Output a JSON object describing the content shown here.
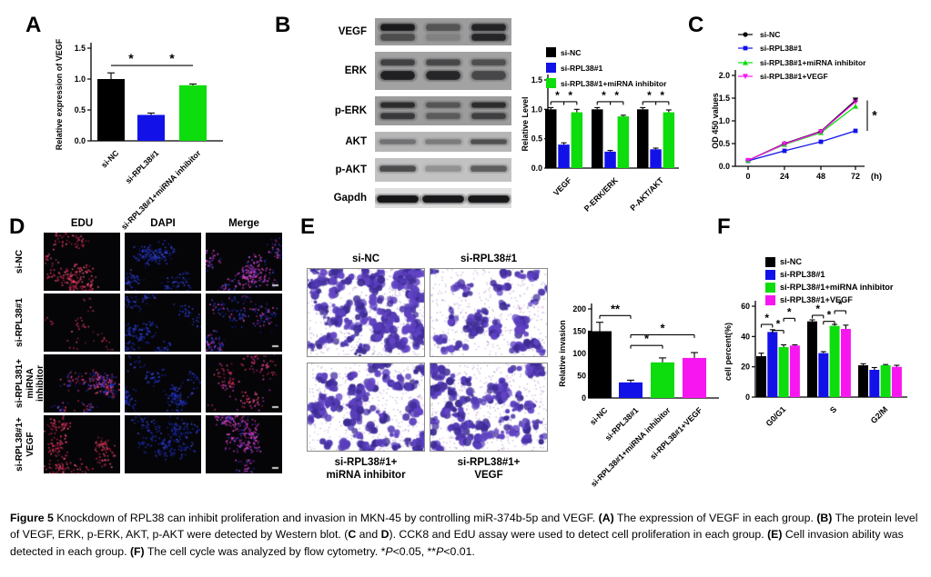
{
  "colors": {
    "black": "#000000",
    "blue": "#1212e8",
    "green": "#0ddc0d",
    "magenta": "#f716f0"
  },
  "panels": {
    "A": {
      "label": "A"
    },
    "B": {
      "label": "B",
      "blot_rows": [
        "VEGF",
        "ERK",
        "p-ERK",
        "AKT",
        "p-AKT",
        "Gapdh"
      ]
    },
    "C": {
      "label": "C"
    },
    "D": {
      "label": "D",
      "col_headers": [
        "EDU",
        "DAPI",
        "Merge"
      ],
      "row_labels": [
        "si-NC",
        "si-RPL38#1",
        "si-RPL381+\nmiRNA inhibitor",
        "si-RPL38#1+\nVEGF"
      ]
    },
    "E": {
      "label": "E",
      "top_labels": [
        "si-NC",
        "si-RPL38#1"
      ],
      "bottom_labels": [
        "si-RPL38#1+\nmiRNA inhibitor",
        "si-RPL38#1+\nVEGF"
      ]
    },
    "F": {
      "label": "F"
    }
  },
  "chart_data": [
    {
      "id": "A",
      "type": "bar",
      "title": "",
      "ylabel": "Relative expression of VEGF",
      "categories": [
        "si-NC",
        "si-RPL38#1",
        "si-RPL38#1+miRNA inhibitor"
      ],
      "values": [
        1.0,
        0.42,
        0.9
      ],
      "errors": [
        0.1,
        0.03,
        0.02
      ],
      "bar_colors": [
        "black",
        "blue",
        "green"
      ],
      "ylim": [
        0,
        1.5
      ],
      "yticks": [
        0,
        0.5,
        1,
        1.5
      ],
      "ytick_labels": [
        "0.0",
        "0.5",
        "1.0",
        "1.5"
      ],
      "sig": [
        {
          "from": 0,
          "to": 1,
          "y": 1.22,
          "label": "*"
        },
        {
          "from": 1,
          "to": 2,
          "y": 1.22,
          "label": "*"
        }
      ]
    },
    {
      "id": "B",
      "type": "grouped-bar",
      "ylabel": "Relative Level",
      "categories": [
        "VEGF",
        "P-ERK/ERK",
        "P-AKT/AKT"
      ],
      "series": [
        {
          "name": "si-NC",
          "color": "black",
          "values": [
            1.0,
            1.0,
            1.0
          ],
          "errors": [
            0.03,
            0.03,
            0.03
          ]
        },
        {
          "name": "si-RPL38#1",
          "color": "blue",
          "values": [
            0.4,
            0.28,
            0.32
          ],
          "errors": [
            0.03,
            0.02,
            0.02
          ]
        },
        {
          "name": "si-RPL38#1+miRNA inhibitor",
          "color": "green",
          "values": [
            0.95,
            0.88,
            0.95
          ],
          "errors": [
            0.05,
            0.02,
            0.04
          ]
        }
      ],
      "ylim": [
        0,
        1.5
      ],
      "yticks": [
        0,
        0.5,
        1,
        1.5
      ],
      "ytick_labels": [
        "0.0",
        "0.5",
        "1.0",
        "1.5"
      ],
      "legend_position": "top-left",
      "sig": [
        {
          "cat": 0,
          "from": 0,
          "to": 1,
          "y": 1.13,
          "label": "*"
        },
        {
          "cat": 0,
          "from": 1,
          "to": 2,
          "y": 1.13,
          "label": "*"
        },
        {
          "cat": 1,
          "from": 0,
          "to": 1,
          "y": 1.13,
          "label": "*"
        },
        {
          "cat": 1,
          "from": 1,
          "to": 2,
          "y": 1.13,
          "label": "*"
        },
        {
          "cat": 2,
          "from": 0,
          "to": 1,
          "y": 1.13,
          "label": "*"
        },
        {
          "cat": 2,
          "from": 1,
          "to": 2,
          "y": 1.13,
          "label": "*"
        }
      ]
    },
    {
      "id": "C",
      "type": "line",
      "ylabel": "OD 450 values",
      "xlabel": "(h)",
      "x": [
        0,
        24,
        48,
        72
      ],
      "series": [
        {
          "name": "si-NC",
          "color": "black",
          "marker": "circle",
          "values": [
            0.13,
            0.5,
            0.77,
            1.45
          ]
        },
        {
          "name": "si-RPL38#1",
          "color": "blue",
          "marker": "square",
          "values": [
            0.12,
            0.34,
            0.54,
            0.78
          ]
        },
        {
          "name": "si-RPL38#1+miRNA inhibitor",
          "color": "green",
          "marker": "triangle",
          "values": [
            0.13,
            0.48,
            0.74,
            1.32
          ]
        },
        {
          "name": "si-RPL38#1+VEGF",
          "color": "magenta",
          "marker": "triangle-down",
          "values": [
            0.13,
            0.49,
            0.76,
            1.42
          ]
        }
      ],
      "ylim": [
        0,
        2
      ],
      "yticks": [
        0,
        0.5,
        1,
        1.5,
        2
      ],
      "ytick_labels": [
        "0.0",
        "0.5",
        "1.0",
        "1.5",
        "2.0"
      ],
      "legend_position": "top-left",
      "sig": {
        "label": "*",
        "from_value": 1.45,
        "to_value": 0.78
      }
    },
    {
      "id": "E",
      "type": "bar",
      "ylabel": "Relative invasion",
      "categories": [
        "si-NC",
        "si-RPL38#1",
        "si-RPL38#1+miRNA inhibitor",
        "si-RPL38#1+VEGF"
      ],
      "values": [
        150,
        35,
        80,
        90
      ],
      "errors": [
        20,
        5,
        10,
        12
      ],
      "bar_colors": [
        "black",
        "blue",
        "green",
        "magenta"
      ],
      "ylim": [
        0,
        200
      ],
      "yticks": [
        0,
        50,
        100,
        150,
        200
      ],
      "ytick_labels": [
        "0",
        "50",
        "100",
        "150",
        "200"
      ],
      "sig": [
        {
          "from": 0,
          "to": 1,
          "y": 185,
          "label": "**"
        },
        {
          "from": 1,
          "to": 3,
          "y": 142,
          "label": "*"
        },
        {
          "from": 1,
          "to": 2,
          "y": 118,
          "label": "*"
        }
      ]
    },
    {
      "id": "F",
      "type": "grouped-bar",
      "ylabel": "cell percent(%)",
      "categories": [
        "G0/G1",
        "S",
        "G2/M"
      ],
      "series": [
        {
          "name": "si-NC",
          "color": "black",
          "values": [
            27,
            50,
            21
          ],
          "errors": [
            2,
            1,
            1
          ]
        },
        {
          "name": "si-RPL38#1",
          "color": "blue",
          "values": [
            43,
            29,
            18
          ],
          "errors": [
            1.5,
            1,
            1.5
          ]
        },
        {
          "name": "si-RPL38#1+miRNA inhibitor",
          "color": "green",
          "values": [
            33,
            47,
            21
          ],
          "errors": [
            1.5,
            1,
            0.5
          ]
        },
        {
          "name": "si-RPL38#1+VEGF",
          "color": "magenta",
          "values": [
            34,
            45,
            20
          ],
          "errors": [
            0.5,
            2.5,
            1
          ]
        }
      ],
      "ylim": [
        0,
        60
      ],
      "yticks": [
        0,
        20,
        40,
        60
      ],
      "ytick_labels": [
        "0",
        "20",
        "40",
        "60"
      ],
      "legend_position": "top-left",
      "sig": [
        {
          "cat": 0,
          "from": 0,
          "to": 1,
          "y": 48,
          "label": "*"
        },
        {
          "cat": 0,
          "from": 1,
          "to": 2,
          "y": 44,
          "label": "*"
        },
        {
          "cat": 0,
          "from": 2,
          "to": 3,
          "y": 52,
          "label": "*"
        },
        {
          "cat": 1,
          "from": 0,
          "to": 1,
          "y": 54,
          "label": "*"
        },
        {
          "cat": 1,
          "from": 1,
          "to": 2,
          "y": 50,
          "label": "*"
        },
        {
          "cat": 1,
          "from": 2,
          "to": 3,
          "y": 57,
          "label": "*"
        }
      ]
    }
  ],
  "caption": {
    "segments": [
      {
        "t": "Figure 5",
        "b": 1
      },
      {
        "t": " Knockdown of RPL38 can inhibit proliferation and invasion in MKN-45 by controlling miR-374b-5p and VEGF. ",
        "b": 0
      },
      {
        "t": "(A)",
        "b": 1
      },
      {
        "t": " The expression of VEGF in each group. ",
        "b": 0
      },
      {
        "t": "(B)",
        "b": 1
      },
      {
        "t": " The protein level of VEGF, ERK, p-ERK, AKT, p-AKT were detected by Western blot. (",
        "b": 0
      },
      {
        "t": "C",
        "b": 1
      },
      {
        "t": " and ",
        "b": 0
      },
      {
        "t": "D",
        "b": 1
      },
      {
        "t": "). CCK8 and EdU assay were used to detect cell proliferation in each group. ",
        "b": 0
      },
      {
        "t": "(E)",
        "b": 1
      },
      {
        "t": " Cell invasion ability was detected in each group. ",
        "b": 0
      },
      {
        "t": "(F)",
        "b": 1
      },
      {
        "t": " The cell cycle was analyzed by flow cytometry. *",
        "b": 0
      },
      {
        "t": "P",
        "b": 0,
        "i": 1
      },
      {
        "t": "<0.05, **",
        "b": 0
      },
      {
        "t": "P",
        "b": 0,
        "i": 1
      },
      {
        "t": "<0.01.",
        "b": 0
      }
    ]
  }
}
